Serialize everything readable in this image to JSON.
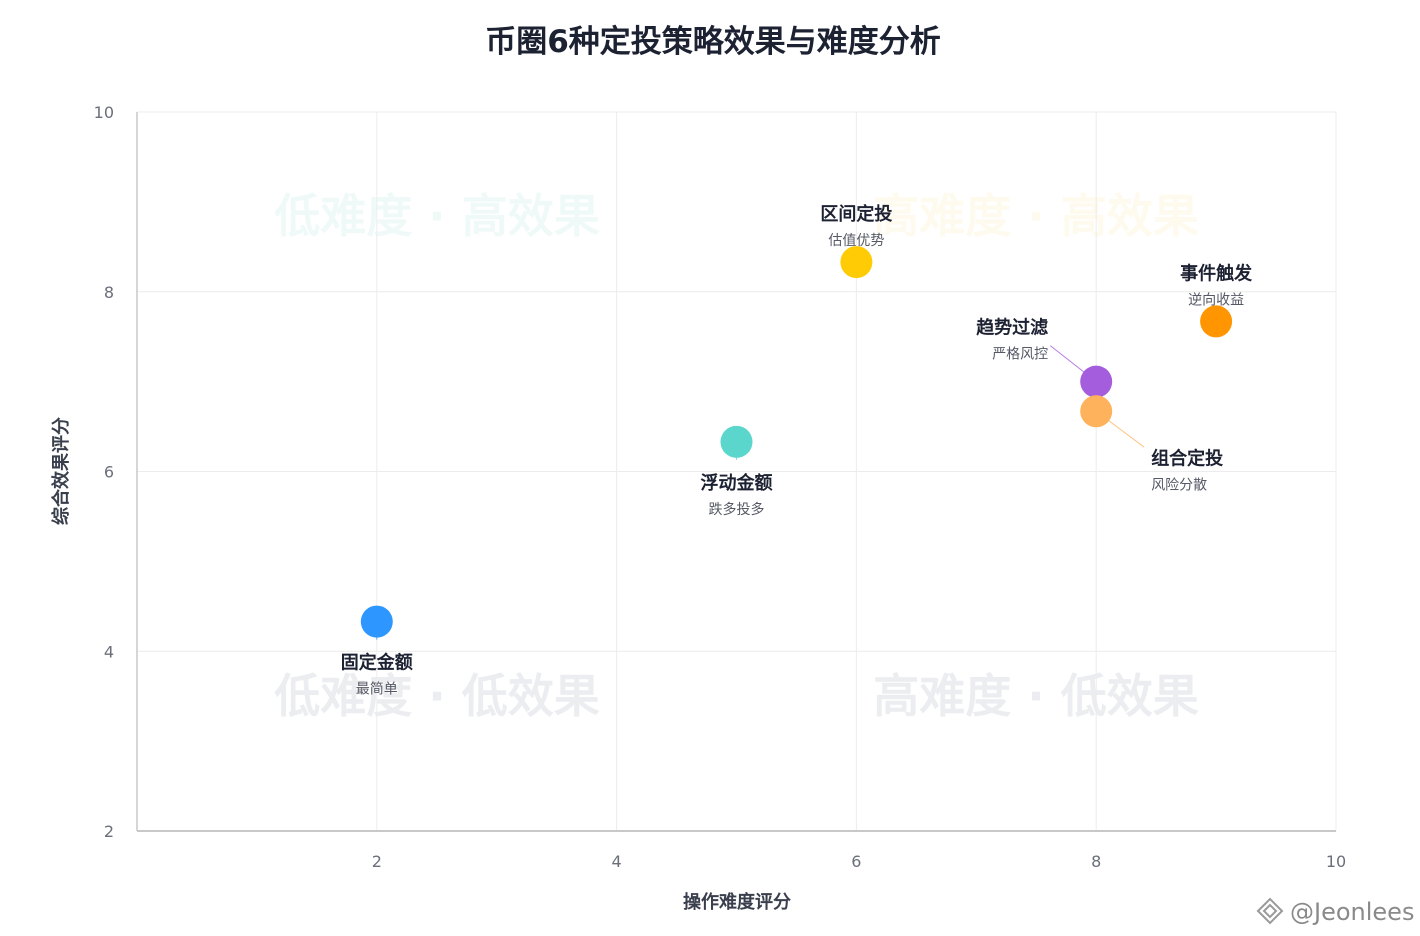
{
  "chart_data": {
    "type": "scatter",
    "title": "币圈6种定投策略效果与难度分析",
    "xlabel": "操作难度评分",
    "ylabel": "综合效果评分",
    "xlim": [
      0,
      10
    ],
    "ylim": [
      2,
      10
    ],
    "xticks": [
      "2",
      "4",
      "6",
      "8",
      "10"
    ],
    "yticks": [
      "2",
      "4",
      "6",
      "8",
      "10"
    ],
    "grid": true,
    "quadrant_labels": [
      {
        "text": "低难度 · 高效果",
        "color": "#2ec4a6"
      },
      {
        "text": "高难度 · 高效果",
        "color": "#f5c518"
      },
      {
        "text": "低难度 · 低效果",
        "color": "#c8ccd4"
      },
      {
        "text": "高难度 · 低效果",
        "color": "#c8ccd4"
      }
    ],
    "points": [
      {
        "name": "固定金额",
        "note": "最简单",
        "x": 2,
        "y": 4.33,
        "color": "#2e97ff"
      },
      {
        "name": "浮动金额",
        "note": "跌多投多",
        "x": 5,
        "y": 6.33,
        "color": "#5ad6cc"
      },
      {
        "name": "区间定投",
        "note": "估值优势",
        "x": 6,
        "y": 8.33,
        "color": "#ffcb05"
      },
      {
        "name": "趋势过滤",
        "note": "严格风控",
        "x": 8,
        "y": 7.0,
        "color": "#a45ddc"
      },
      {
        "name": "组合定投",
        "note": "风险分散",
        "x": 8,
        "y": 6.67,
        "color": "#ffb25c"
      },
      {
        "name": "事件触发",
        "note": "逆向收益",
        "x": 9,
        "y": 7.67,
        "color": "#ff9500"
      }
    ]
  },
  "watermark": "@Jeonlees"
}
